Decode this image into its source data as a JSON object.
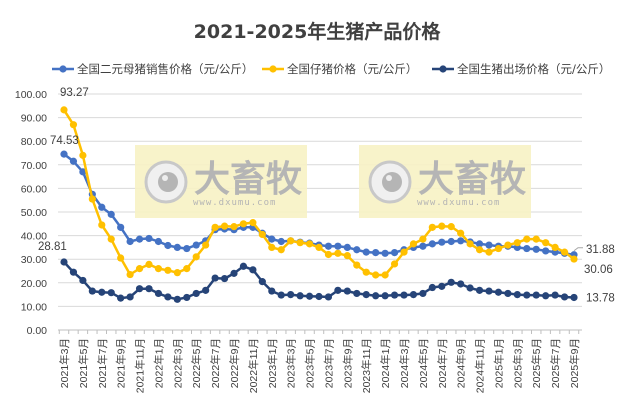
{
  "chart_data": {
    "type": "line",
    "title": "2021-2025年生猪产品价格",
    "xlabel": "",
    "ylabel": "",
    "ylim": [
      0,
      100
    ],
    "yticks": [
      "0.00",
      "10.00",
      "20.00",
      "30.00",
      "40.00",
      "50.00",
      "60.00",
      "70.00",
      "80.00",
      "90.00",
      "100.00"
    ],
    "grid": true,
    "legend_position": "top",
    "x_tick_labels": [
      "2021年3月",
      "2021年5月",
      "2021年7月",
      "2021年9月",
      "2021年11月",
      "2022年1月",
      "2022年3月",
      "2022年5月",
      "2022年7月",
      "2022年9月",
      "2022年11月",
      "2023年1月",
      "2023年3月",
      "2023年5月",
      "2023年7月",
      "2023年9月",
      "2023年11月",
      "2024年1月",
      "2024年3月",
      "2024年5月",
      "2024年7月",
      "2024年9月",
      "2024年11月",
      "2025年1月",
      "2025年3月",
      "2025年5月",
      "2025年7月",
      "2025年9月"
    ],
    "x_range": [
      "2021年3月",
      "2025年9月"
    ],
    "series": [
      {
        "name": "全国二元母猪销售价格（元/公斤）",
        "color": "#4472C4",
        "values": [
          74.53,
          71.5,
          67,
          57.5,
          52,
          49,
          43.5,
          37.5,
          38.5,
          38.8,
          37.5,
          35.8,
          35,
          34.5,
          36,
          37.8,
          42.5,
          42.8,
          42.5,
          43.5,
          43.5,
          41,
          38.5,
          37.5,
          37.8,
          37.2,
          36.8,
          36,
          35.5,
          35.5,
          35,
          34,
          33,
          32.8,
          32.5,
          32.8,
          34,
          35,
          35.5,
          36.5,
          37.2,
          37.5,
          37.8,
          37.3,
          36.5,
          36,
          35.5,
          35.5,
          35,
          34.5,
          34.2,
          33.5,
          33,
          32.5,
          31.88
        ],
        "first_label": "74.53",
        "last_label": "31.88"
      },
      {
        "name": "全国仔猪价格（元/公斤）",
        "color": "#FFC000",
        "values": [
          93.27,
          87,
          74,
          55.5,
          44.5,
          38.5,
          30.5,
          23.5,
          26,
          27.8,
          26,
          25.3,
          24.3,
          26,
          31,
          36,
          43.5,
          44,
          43.8,
          45,
          45.5,
          40.5,
          35,
          34,
          37.8,
          37,
          36.5,
          35,
          32,
          32.5,
          31.5,
          27.5,
          24.5,
          23.3,
          23.3,
          28,
          33,
          36.5,
          38.5,
          43.5,
          44,
          43.8,
          41,
          36.5,
          34,
          33,
          34.5,
          36,
          37,
          38.5,
          38.5,
          37,
          35,
          33,
          30.06
        ],
        "first_label": "93.27",
        "last_label": "30.06"
      },
      {
        "name": "全国生猪出场价格（元/公斤）",
        "color": "#264478",
        "values": [
          28.81,
          24.5,
          21,
          16.5,
          16,
          15.8,
          13.5,
          14,
          17.5,
          17.5,
          15.5,
          14,
          13,
          13.8,
          15.5,
          16.8,
          22,
          21.8,
          24,
          27,
          25.5,
          20.5,
          16.5,
          14.8,
          15,
          14.5,
          14.3,
          14.2,
          14,
          16.8,
          16.5,
          15.5,
          15,
          14.5,
          14.5,
          14.8,
          14.8,
          15,
          15.5,
          18,
          18.5,
          20.2,
          19.5,
          17.8,
          16.8,
          16.5,
          16,
          15.5,
          15,
          14.8,
          14.8,
          14.5,
          14.8,
          14,
          13.78
        ],
        "first_label": "28.81",
        "last_label": "13.78"
      }
    ],
    "watermark": {
      "text": "大畜牧",
      "url": "www.dxumu.com"
    }
  }
}
